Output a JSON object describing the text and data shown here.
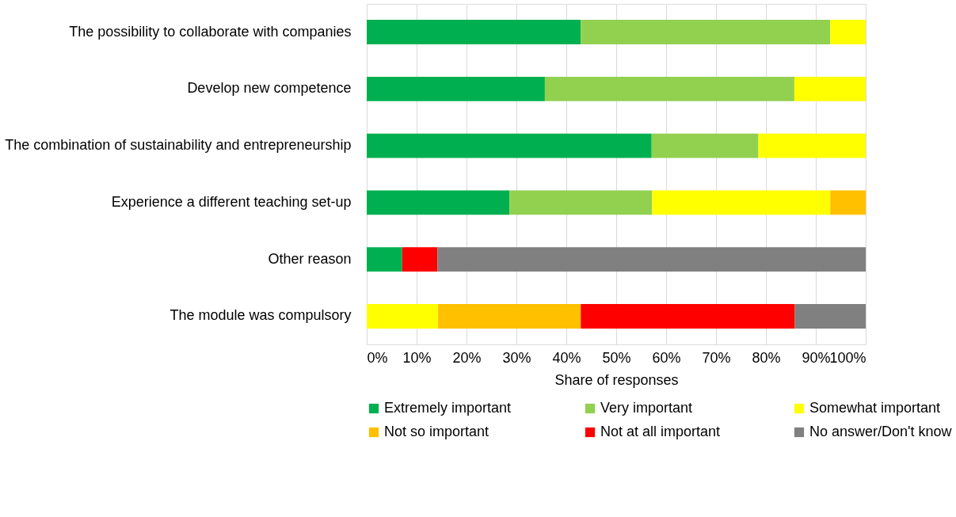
{
  "chart_data": {
    "type": "bar",
    "orientation": "horizontal",
    "stacked": true,
    "categories": [
      "The possibility to collaborate with companies",
      "Develop new competence",
      "The combination of sustainability and entrepreneurship",
      "Experience a different teaching set-up",
      "Other reason",
      "The module was compulsory"
    ],
    "series": [
      {
        "name": "Extremely important",
        "color": "#00b050",
        "values": [
          42.9,
          35.7,
          57.1,
          28.6,
          7.1,
          null
        ]
      },
      {
        "name": "Very important",
        "color": "#92d050",
        "values": [
          50,
          50,
          21.4,
          28.6,
          null,
          null
        ]
      },
      {
        "name": "Somewhat important",
        "color": "#ffff00",
        "values": [
          7.1,
          14.3,
          21.5,
          35.7,
          null,
          14.3
        ]
      },
      {
        "name": "Not so important",
        "color": "#ffc000",
        "values": [
          null,
          null,
          null,
          7.1,
          null,
          28.6
        ]
      },
      {
        "name": "Not at all important",
        "color": "#ff0000",
        "values": [
          null,
          null,
          null,
          null,
          7.1,
          42.9
        ]
      },
      {
        "name": "No answer/Don't know",
        "color": "#808080",
        "values": [
          null,
          null,
          null,
          null,
          85.8,
          14.2
        ]
      }
    ],
    "xlim": [
      0,
      100
    ],
    "xticks": [
      {
        "value": 0,
        "label": "0%"
      },
      {
        "value": 10,
        "label": "10%"
      },
      {
        "value": 20,
        "label": "20%"
      },
      {
        "value": 30,
        "label": "30%"
      },
      {
        "value": 40,
        "label": "40%"
      },
      {
        "value": 50,
        "label": "50%"
      },
      {
        "value": 60,
        "label": "60%"
      },
      {
        "value": 70,
        "label": "70%"
      },
      {
        "value": 80,
        "label": "80%"
      },
      {
        "value": 90,
        "label": "90%"
      },
      {
        "value": 100,
        "label": "100%"
      }
    ],
    "xlabel": "Share of responses",
    "grid": "x",
    "legend": "bottom"
  }
}
